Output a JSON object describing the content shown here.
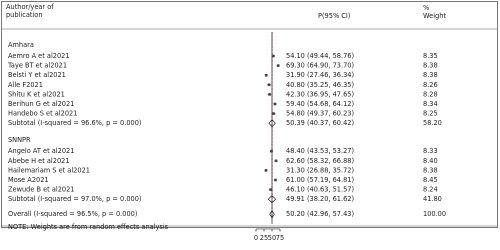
{
  "chart_data": {
    "type": "forest",
    "header": {
      "study": "Author/year of publication",
      "estimate": "P(95% CI)",
      "weight_unit": "%",
      "weight": "Weight"
    },
    "xlim": [
      0,
      75
    ],
    "xticks": [
      0,
      25,
      50,
      75
    ],
    "groups": [
      {
        "name": "Amhara",
        "studies": [
          {
            "name": "Aemro A et al2021",
            "es": 54.1,
            "lo": 49.44,
            "hi": 58.76,
            "ci_label": "54.10 (49.44, 58.76)",
            "weight": "8.35"
          },
          {
            "name": "Taye BT et al2021",
            "es": 69.3,
            "lo": 64.9,
            "hi": 73.7,
            "ci_label": "69.30 (64.90, 73.70)",
            "weight": "8.38"
          },
          {
            "name": "Belsti Y et al2021",
            "es": 31.9,
            "lo": 27.46,
            "hi": 36.34,
            "ci_label": "31.90 (27.46, 36.34)",
            "weight": "8.38"
          },
          {
            "name": "Alle F2021",
            "es": 40.8,
            "lo": 35.25,
            "hi": 46.35,
            "ci_label": "40.80 (35.25, 46.35)",
            "weight": "8.26"
          },
          {
            "name": "Shitu K et al2021",
            "es": 42.3,
            "lo": 36.95,
            "hi": 47.65,
            "ci_label": "42.30 (36.95, 47.65)",
            "weight": "8.28"
          },
          {
            "name": "Berihun G et al2021",
            "es": 59.4,
            "lo": 54.68,
            "hi": 64.12,
            "ci_label": "59.40 (54.68, 64.12)",
            "weight": "8.34"
          },
          {
            "name": "Handebo S et al2021",
            "es": 54.8,
            "lo": 49.37,
            "hi": 60.23,
            "ci_label": "54.80 (49.37, 60.23)",
            "weight": "8.25"
          }
        ],
        "subtotal": {
          "label": "Subtotal  (I-squared = 96.6%, p = 0.000)",
          "es": 50.39,
          "lo": 40.37,
          "hi": 60.42,
          "ci_label": "50.39 (40.37, 60.42)",
          "weight": "58.20"
        }
      },
      {
        "name": "SNNPR",
        "studies": [
          {
            "name": "Angelo AT  et al2021",
            "es": 48.4,
            "lo": 43.53,
            "hi": 53.27,
            "ci_label": "48.40 (43.53, 53.27)",
            "weight": "8.33"
          },
          {
            "name": "Abebe H et al2021",
            "es": 62.6,
            "lo": 58.32,
            "hi": 66.88,
            "ci_label": "62.60 (58.32, 66.88)",
            "weight": "8.40"
          },
          {
            "name": "Hailemariam S et al2021",
            "es": 31.3,
            "lo": 26.88,
            "hi": 35.72,
            "ci_label": "31.30 (26.88, 35.72)",
            "weight": "8.38"
          },
          {
            "name": "Mose A2021",
            "es": 61.0,
            "lo": 57.19,
            "hi": 64.81,
            "ci_label": "61.00 (57.19, 64.81)",
            "weight": "8.45"
          },
          {
            "name": "Zewude B et al2021",
            "es": 46.1,
            "lo": 40.63,
            "hi": 51.57,
            "ci_label": "46.10 (40.63, 51.57)",
            "weight": "8.24"
          }
        ],
        "subtotal": {
          "label": "Subtotal  (I-squared = 97.0%, p = 0.000)",
          "es": 49.91,
          "lo": 38.2,
          "hi": 61.62,
          "ci_label": "49.91 (38.20, 61.62)",
          "weight": "41.80"
        }
      }
    ],
    "overall": {
      "label": "Overall  (I-squared = 96.5%, p = 0.000)",
      "es": 50.2,
      "lo": 42.96,
      "hi": 57.43,
      "ci_label": "50.20 (42.96, 57.43)",
      "weight": "100.00"
    },
    "note": "NOTE: Weights are from random effects analysis"
  }
}
